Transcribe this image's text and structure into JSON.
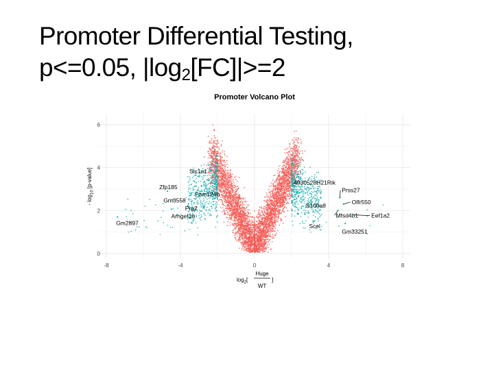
{
  "slide": {
    "title_line1": "Promoter Differential Testing,",
    "title_line2_pre": "p<=0.05, |log",
    "title_line2_sub": "2",
    "title_line2_post": "[FC]|>=2"
  },
  "chart_data": {
    "type": "scatter",
    "title": "Promoter Volcano Plot",
    "xlabel_prefix": "log",
    "xlabel_sub": "2",
    "xlabel_open": "[",
    "xlabel_numerator": "Huge",
    "xlabel_denominator": "WT",
    "xlabel_close": "]",
    "ylabel_prefix": "- log",
    "ylabel_sub": "10",
    "ylabel_rest": " [p-value]",
    "xlim": [
      -8,
      8
    ],
    "ylim": [
      0,
      6.5
    ],
    "xticks": [
      -8,
      -4,
      0,
      4,
      8
    ],
    "yticks": [
      0,
      2,
      4,
      6
    ],
    "grid": true,
    "significance": {
      "abs_log2fc_threshold": 2,
      "p_threshold": 0.05
    },
    "colors": {
      "significant": "#1aaeb0",
      "not_significant": "#f55a55"
    },
    "labeled_genes": [
      {
        "label": "Slc1a1",
        "x": -3.0,
        "y": 3.6
      },
      {
        "label": "Zfp185",
        "x": -4.7,
        "y": 2.9
      },
      {
        "label": "Fam124b",
        "x": -2.4,
        "y": 2.8
      },
      {
        "label": "Gm3558",
        "x": -4.4,
        "y": 2.5
      },
      {
        "label": "Prg2",
        "x": -3.6,
        "y": 2.2
      },
      {
        "label": "Arhgef16",
        "x": -4.2,
        "y": 1.8
      },
      {
        "label": "Gm2897",
        "x": -7.4,
        "y": 1.7
      },
      {
        "label": "4930528H21Rik",
        "x": 2.3,
        "y": 3.3
      },
      {
        "label": "Prss27",
        "x": 4.6,
        "y": 2.6
      },
      {
        "label": "S100a8",
        "x": 3.1,
        "y": 2.4
      },
      {
        "label": "Olfr550",
        "x": 4.8,
        "y": 2.3
      },
      {
        "label": "Mfsd4b1",
        "x": 4.5,
        "y": 2.0
      },
      {
        "label": "Eef1a2",
        "x": 5.3,
        "y": 1.8
      },
      {
        "label": "Scel",
        "x": 3.2,
        "y": 1.5
      },
      {
        "label": "Gm33251",
        "x": 4.9,
        "y": 1.4
      }
    ]
  }
}
